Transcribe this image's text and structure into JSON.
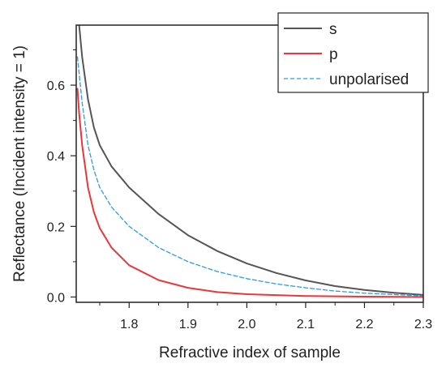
{
  "chart_data": {
    "type": "line",
    "title": "",
    "xlabel": "Refractive index of sample",
    "ylabel": "Reflectance (Incident intensity = 1)",
    "xlim": [
      1.71,
      2.3
    ],
    "ylim": [
      -0.015,
      0.77
    ],
    "xticks": [
      1.8,
      1.9,
      2.0,
      2.1,
      2.2,
      2.3
    ],
    "xtick_labels": [
      "1.8",
      "1.9",
      "2.0",
      "2.1",
      "2.2",
      "2.3"
    ],
    "yticks": [
      0.0,
      0.2,
      0.4,
      0.6
    ],
    "ytick_labels": [
      "0.0",
      "0.2",
      "0.4",
      "0.6"
    ],
    "grid": false,
    "legend_position": "top-right",
    "series": [
      {
        "name": "s",
        "color": "#555555",
        "line_style": "solid",
        "x": [
          1.715,
          1.72,
          1.73,
          1.74,
          1.75,
          1.77,
          1.8,
          1.85,
          1.9,
          1.95,
          2.0,
          2.05,
          2.1,
          2.15,
          2.2,
          2.25,
          2.3
        ],
        "y": [
          0.77,
          0.68,
          0.56,
          0.48,
          0.43,
          0.37,
          0.31,
          0.235,
          0.175,
          0.13,
          0.095,
          0.068,
          0.047,
          0.031,
          0.02,
          0.012,
          0.006
        ]
      },
      {
        "name": "p",
        "color": "#e8383b",
        "line_style": "solid",
        "x": [
          1.712,
          1.715,
          1.72,
          1.73,
          1.74,
          1.75,
          1.77,
          1.8,
          1.85,
          1.9,
          1.95,
          2.0,
          2.1,
          2.2,
          2.3
        ],
        "y": [
          0.59,
          0.52,
          0.43,
          0.31,
          0.24,
          0.195,
          0.14,
          0.09,
          0.048,
          0.026,
          0.014,
          0.008,
          0.003,
          0.001,
          0.0
        ]
      },
      {
        "name": "unpolarised",
        "color": "#2e9ae0",
        "line_style": "dashed",
        "x": [
          1.712,
          1.72,
          1.73,
          1.74,
          1.75,
          1.77,
          1.8,
          1.85,
          1.9,
          1.95,
          2.0,
          2.05,
          2.1,
          2.15,
          2.2,
          2.25,
          2.3
        ],
        "y": [
          0.68,
          0.55,
          0.43,
          0.36,
          0.31,
          0.255,
          0.2,
          0.14,
          0.1,
          0.072,
          0.052,
          0.037,
          0.026,
          0.017,
          0.011,
          0.007,
          0.003
        ]
      }
    ]
  }
}
